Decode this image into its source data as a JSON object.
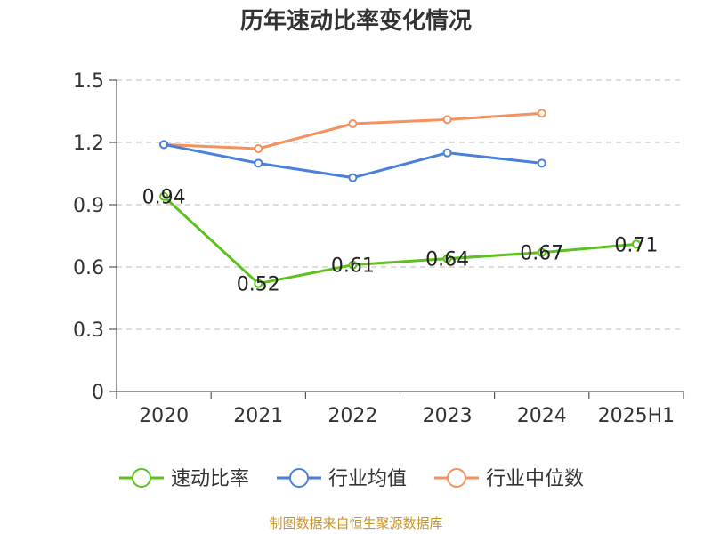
{
  "colors": {
    "series_1": "#5dc01e",
    "series_2": "#4a7fdc",
    "series_3": "#f4915f",
    "grid": "#bbbbbb",
    "axis": "#333333",
    "source": "#c8952c"
  },
  "chart_data": {
    "type": "line",
    "title": "历年速动比率变化情况",
    "source_text": "制图数据来自恒生聚源数据库",
    "categories": [
      "2020",
      "2021",
      "2022",
      "2023",
      "2024",
      "2025H1"
    ],
    "y_ticks": [
      "0",
      "0.3",
      "0.6",
      "0.9",
      "1.2",
      "1.5"
    ],
    "ylim": [
      0,
      1.5
    ],
    "grid": true,
    "legend_position": "bottom",
    "series": [
      {
        "name": "速动比率",
        "values": [
          0.94,
          0.52,
          0.61,
          0.64,
          0.67,
          0.71
        ],
        "labels": [
          "0.94",
          "0.52",
          "0.61",
          "0.64",
          "0.67",
          "0.71"
        ]
      },
      {
        "name": "行业均值",
        "values": [
          1.19,
          1.1,
          1.03,
          1.15,
          1.1,
          null
        ]
      },
      {
        "name": "行业中位数",
        "values": [
          1.19,
          1.17,
          1.29,
          1.31,
          1.34,
          null
        ]
      }
    ]
  }
}
